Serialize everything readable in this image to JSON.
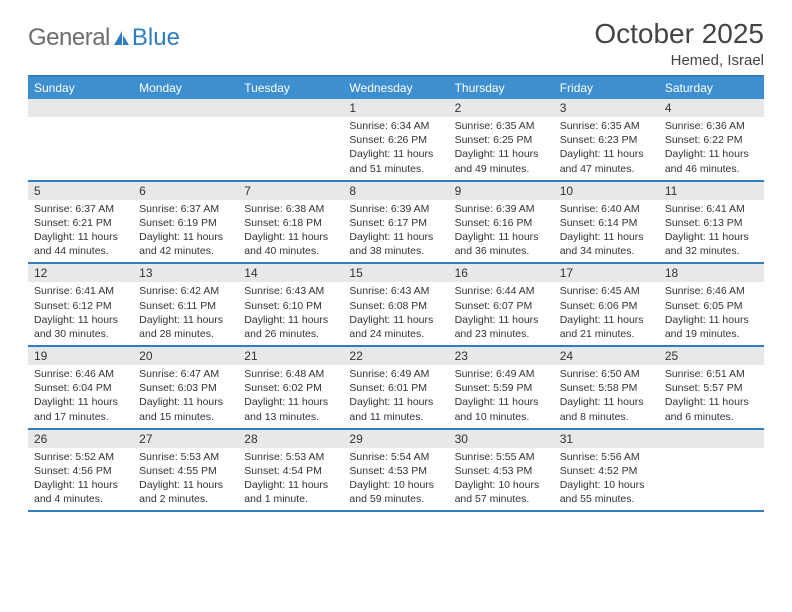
{
  "logo": {
    "gray": "General",
    "blue": "Blue"
  },
  "header": {
    "title": "October 2025",
    "subtitle": "Hemed, Israel"
  },
  "colors": {
    "brand_blue": "#2f7dc0",
    "header_blue": "#3e8fcf",
    "row_gray": "#e7e8e9",
    "text": "#333333",
    "logo_gray": "#6d6d6d"
  },
  "dow": [
    "Sunday",
    "Monday",
    "Tuesday",
    "Wednesday",
    "Thursday",
    "Friday",
    "Saturday"
  ],
  "labels": {
    "sunrise": "Sunrise: ",
    "sunset": "Sunset: ",
    "daylight": "Daylight: "
  },
  "weeks": [
    [
      {
        "blank": true
      },
      {
        "blank": true
      },
      {
        "blank": true
      },
      {
        "day": "1",
        "sunrise": "6:34 AM",
        "sunset": "6:26 PM",
        "daylight": "11 hours and 51 minutes."
      },
      {
        "day": "2",
        "sunrise": "6:35 AM",
        "sunset": "6:25 PM",
        "daylight": "11 hours and 49 minutes."
      },
      {
        "day": "3",
        "sunrise": "6:35 AM",
        "sunset": "6:23 PM",
        "daylight": "11 hours and 47 minutes."
      },
      {
        "day": "4",
        "sunrise": "6:36 AM",
        "sunset": "6:22 PM",
        "daylight": "11 hours and 46 minutes."
      }
    ],
    [
      {
        "day": "5",
        "sunrise": "6:37 AM",
        "sunset": "6:21 PM",
        "daylight": "11 hours and 44 minutes."
      },
      {
        "day": "6",
        "sunrise": "6:37 AM",
        "sunset": "6:19 PM",
        "daylight": "11 hours and 42 minutes."
      },
      {
        "day": "7",
        "sunrise": "6:38 AM",
        "sunset": "6:18 PM",
        "daylight": "11 hours and 40 minutes."
      },
      {
        "day": "8",
        "sunrise": "6:39 AM",
        "sunset": "6:17 PM",
        "daylight": "11 hours and 38 minutes."
      },
      {
        "day": "9",
        "sunrise": "6:39 AM",
        "sunset": "6:16 PM",
        "daylight": "11 hours and 36 minutes."
      },
      {
        "day": "10",
        "sunrise": "6:40 AM",
        "sunset": "6:14 PM",
        "daylight": "11 hours and 34 minutes."
      },
      {
        "day": "11",
        "sunrise": "6:41 AM",
        "sunset": "6:13 PM",
        "daylight": "11 hours and 32 minutes."
      }
    ],
    [
      {
        "day": "12",
        "sunrise": "6:41 AM",
        "sunset": "6:12 PM",
        "daylight": "11 hours and 30 minutes."
      },
      {
        "day": "13",
        "sunrise": "6:42 AM",
        "sunset": "6:11 PM",
        "daylight": "11 hours and 28 minutes."
      },
      {
        "day": "14",
        "sunrise": "6:43 AM",
        "sunset": "6:10 PM",
        "daylight": "11 hours and 26 minutes."
      },
      {
        "day": "15",
        "sunrise": "6:43 AM",
        "sunset": "6:08 PM",
        "daylight": "11 hours and 24 minutes."
      },
      {
        "day": "16",
        "sunrise": "6:44 AM",
        "sunset": "6:07 PM",
        "daylight": "11 hours and 23 minutes."
      },
      {
        "day": "17",
        "sunrise": "6:45 AM",
        "sunset": "6:06 PM",
        "daylight": "11 hours and 21 minutes."
      },
      {
        "day": "18",
        "sunrise": "6:46 AM",
        "sunset": "6:05 PM",
        "daylight": "11 hours and 19 minutes."
      }
    ],
    [
      {
        "day": "19",
        "sunrise": "6:46 AM",
        "sunset": "6:04 PM",
        "daylight": "11 hours and 17 minutes."
      },
      {
        "day": "20",
        "sunrise": "6:47 AM",
        "sunset": "6:03 PM",
        "daylight": "11 hours and 15 minutes."
      },
      {
        "day": "21",
        "sunrise": "6:48 AM",
        "sunset": "6:02 PM",
        "daylight": "11 hours and 13 minutes."
      },
      {
        "day": "22",
        "sunrise": "6:49 AM",
        "sunset": "6:01 PM",
        "daylight": "11 hours and 11 minutes."
      },
      {
        "day": "23",
        "sunrise": "6:49 AM",
        "sunset": "5:59 PM",
        "daylight": "11 hours and 10 minutes."
      },
      {
        "day": "24",
        "sunrise": "6:50 AM",
        "sunset": "5:58 PM",
        "daylight": "11 hours and 8 minutes."
      },
      {
        "day": "25",
        "sunrise": "6:51 AM",
        "sunset": "5:57 PM",
        "daylight": "11 hours and 6 minutes."
      }
    ],
    [
      {
        "day": "26",
        "sunrise": "5:52 AM",
        "sunset": "4:56 PM",
        "daylight": "11 hours and 4 minutes."
      },
      {
        "day": "27",
        "sunrise": "5:53 AM",
        "sunset": "4:55 PM",
        "daylight": "11 hours and 2 minutes."
      },
      {
        "day": "28",
        "sunrise": "5:53 AM",
        "sunset": "4:54 PM",
        "daylight": "11 hours and 1 minute."
      },
      {
        "day": "29",
        "sunrise": "5:54 AM",
        "sunset": "4:53 PM",
        "daylight": "10 hours and 59 minutes."
      },
      {
        "day": "30",
        "sunrise": "5:55 AM",
        "sunset": "4:53 PM",
        "daylight": "10 hours and 57 minutes."
      },
      {
        "day": "31",
        "sunrise": "5:56 AM",
        "sunset": "4:52 PM",
        "daylight": "10 hours and 55 minutes."
      },
      {
        "blank": true
      }
    ]
  ]
}
